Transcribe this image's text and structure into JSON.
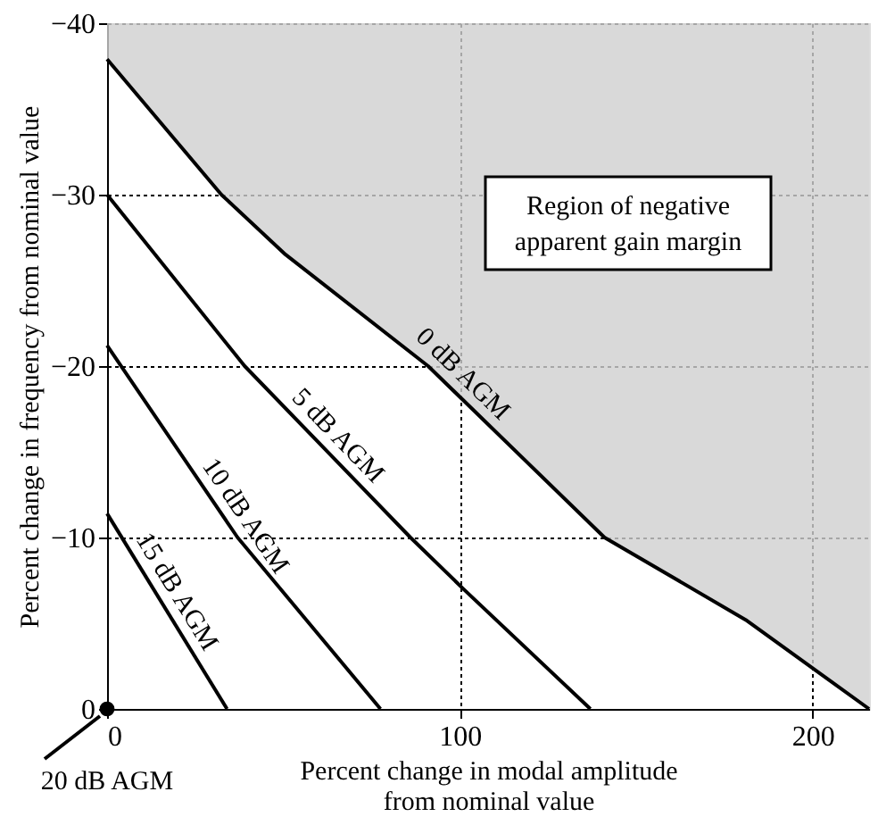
{
  "chart_data": {
    "type": "line",
    "xlabel": "Percent change in modal amplitude from nominal value",
    "ylabel": "Percent change in frequency from nominal value",
    "xlim": [
      0,
      216
    ],
    "xticks": [
      0,
      100,
      200
    ],
    "ylim": [
      0,
      -40
    ],
    "yticks": [
      0,
      -10,
      -20,
      -30,
      -40
    ],
    "grid": true,
    "line_style": "solid",
    "annotations": [
      "Region of negative apparent gain margin"
    ],
    "series": [
      {
        "name": "0 dB AGM",
        "color": "#000000",
        "x": [
          0,
          32.4,
          50.6,
          91,
          141,
          181,
          216
        ],
        "values": [
          -37.9,
          -30,
          -26.5,
          -20,
          -10,
          -5.2,
          0
        ],
        "upper": [
          -40,
          -40,
          -40,
          -40,
          -40,
          -40,
          -40
        ],
        "lower": [
          -37.9,
          -30,
          -26.5,
          -20,
          -10,
          -5.2,
          0
        ]
      },
      {
        "name": "5 dB AGM",
        "color": "#000000",
        "x": [
          0,
          39,
          86,
          101,
          137
        ],
        "values": [
          -30,
          -20,
          -10,
          -7,
          0
        ]
      },
      {
        "name": "10 dB AGM",
        "color": "#000000",
        "x": [
          0,
          37,
          77.5
        ],
        "values": [
          -21.2,
          -10,
          0
        ]
      },
      {
        "name": "15 dB AGM",
        "color": "#000000",
        "x": [
          0,
          34
        ],
        "values": [
          -11.4,
          0
        ]
      },
      {
        "name": "20 dB AGM",
        "type": "scatter",
        "marker": "circle",
        "color": "#000000",
        "x": [
          0
        ],
        "values": [
          0
        ]
      }
    ]
  }
}
